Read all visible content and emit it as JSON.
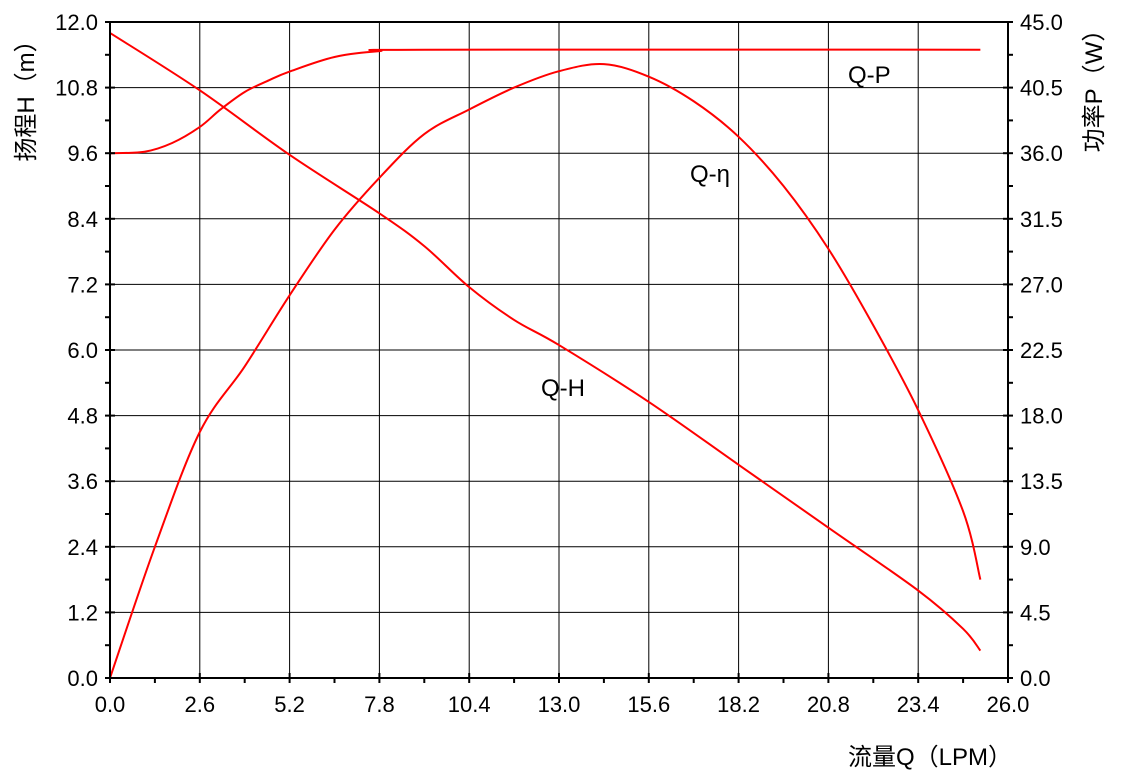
{
  "chart_data": {
    "type": "line",
    "xlabel": "流量Q（LPM）",
    "ylabel": "扬程H（m）",
    "y2label": "功率P（W）",
    "xlim": [
      0,
      26
    ],
    "ylim": [
      0,
      12
    ],
    "y2lim": [
      0,
      45
    ],
    "xticks": [
      "0.0",
      "2.6",
      "5.2",
      "7.8",
      "10.4",
      "13.0",
      "15.6",
      "18.2",
      "20.8",
      "23.4",
      "26.0"
    ],
    "yticks": [
      "0.0",
      "1.2",
      "2.4",
      "3.6",
      "4.8",
      "6.0",
      "7.2",
      "8.4",
      "9.6",
      "10.8",
      "12.0"
    ],
    "y2ticks": [
      "0.0",
      "4.5",
      "9.0",
      "13.5",
      "18.0",
      "22.5",
      "27.0",
      "31.5",
      "36.0",
      "40.5",
      "45.0"
    ],
    "grid": true,
    "line_color": "#ff0000",
    "series": [
      {
        "name": "Q-H",
        "axis": "left",
        "x": [
          0,
          2.6,
          5.2,
          7.8,
          9.1,
          10.4,
          11.7,
          13.0,
          15.6,
          18.2,
          20.8,
          23.4,
          24.7,
          25.2
        ],
        "y": [
          11.8,
          10.75,
          9.57,
          8.5,
          7.9,
          7.15,
          6.55,
          6.09,
          5.05,
          3.9,
          2.75,
          1.6,
          0.9,
          0.5
        ]
      },
      {
        "name": "Q-P",
        "axis": "right",
        "x": [
          0,
          1.0,
          1.8,
          2.6,
          3.2,
          3.9,
          4.6,
          5.2,
          6.5,
          7.8,
          9.1,
          25.2
        ],
        "y": [
          36.0,
          36.1,
          36.7,
          37.8,
          39.0,
          40.2,
          41.0,
          41.6,
          42.6,
          43.0,
          43.1,
          43.1
        ]
      },
      {
        "name": "Q-η",
        "axis": "left",
        "x": [
          0,
          1.3,
          2.6,
          3.9,
          5.2,
          6.5,
          7.8,
          9.1,
          10.4,
          11.7,
          13.0,
          14.3,
          15.6,
          16.9,
          18.2,
          19.5,
          20.8,
          22.1,
          23.4,
          24.7,
          25.2
        ],
        "y": [
          0,
          2.4,
          4.5,
          5.7,
          7.0,
          8.2,
          9.15,
          9.95,
          10.4,
          10.8,
          11.1,
          11.23,
          11.0,
          10.55,
          9.9,
          9.0,
          7.85,
          6.45,
          4.9,
          3.05,
          1.8
        ]
      }
    ],
    "annotations": [
      "Q-P",
      "Q-η",
      "Q-H"
    ]
  }
}
